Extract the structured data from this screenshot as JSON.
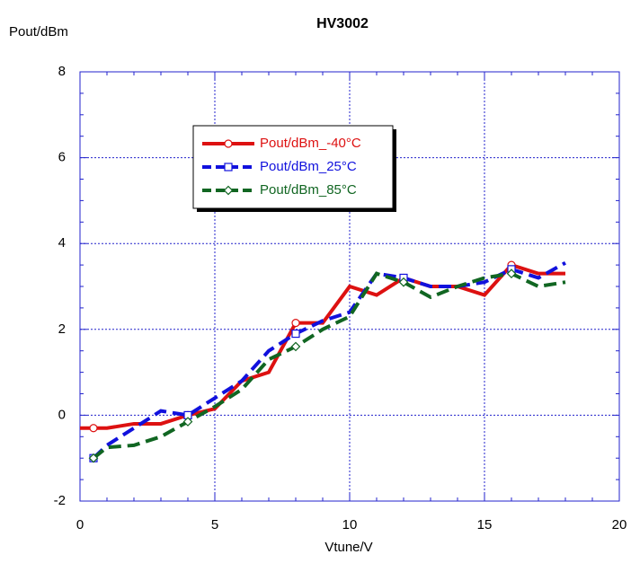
{
  "chart_data": {
    "type": "line",
    "title": "HV3002",
    "x_label": "Vtune/V",
    "y_label": "Pout/dBm",
    "x": [
      0,
      0.5,
      1,
      2,
      3,
      4,
      5,
      6,
      7,
      8,
      9,
      10,
      11,
      12,
      13,
      14,
      15,
      16,
      17,
      18
    ],
    "series": [
      {
        "name": "Pout/dBm_-40°C",
        "color": "#dd1111",
        "dash": "none",
        "marker": "circle",
        "values": [
          -0.3,
          -0.3,
          -0.3,
          -0.2,
          -0.2,
          0,
          0.15,
          0.8,
          1.0,
          2.15,
          2.15,
          3.0,
          2.8,
          3.2,
          3.0,
          3.0,
          2.8,
          3.5,
          3.3,
          3.3
        ]
      },
      {
        "name": "Pout/dBm_25°C",
        "color": "#1111dd",
        "dash": "14,7",
        "marker": "square",
        "values": [
          null,
          -1.0,
          -0.7,
          -0.3,
          0.1,
          0,
          0.4,
          0.8,
          1.5,
          1.9,
          2.2,
          2.4,
          3.3,
          3.2,
          3.0,
          3.0,
          3.1,
          3.4,
          3.2,
          3.55
        ]
      },
      {
        "name": "Pout/dBm_85°C",
        "color": "#116622",
        "dash": "14,7",
        "marker": "diamond",
        "values": [
          null,
          -1.0,
          -0.75,
          -0.7,
          -0.5,
          -0.15,
          0.2,
          0.6,
          1.3,
          1.6,
          2.0,
          2.3,
          3.3,
          3.1,
          2.75,
          3.0,
          3.2,
          3.3,
          3.0,
          3.1
        ]
      }
    ],
    "xlim": [
      0,
      20
    ],
    "ylim": [
      -2,
      8
    ],
    "xticks": [
      0,
      5,
      10,
      15,
      20
    ],
    "yticks": [
      -2,
      0,
      2,
      4,
      6,
      8
    ],
    "grid": true,
    "legend": "upper left"
  }
}
